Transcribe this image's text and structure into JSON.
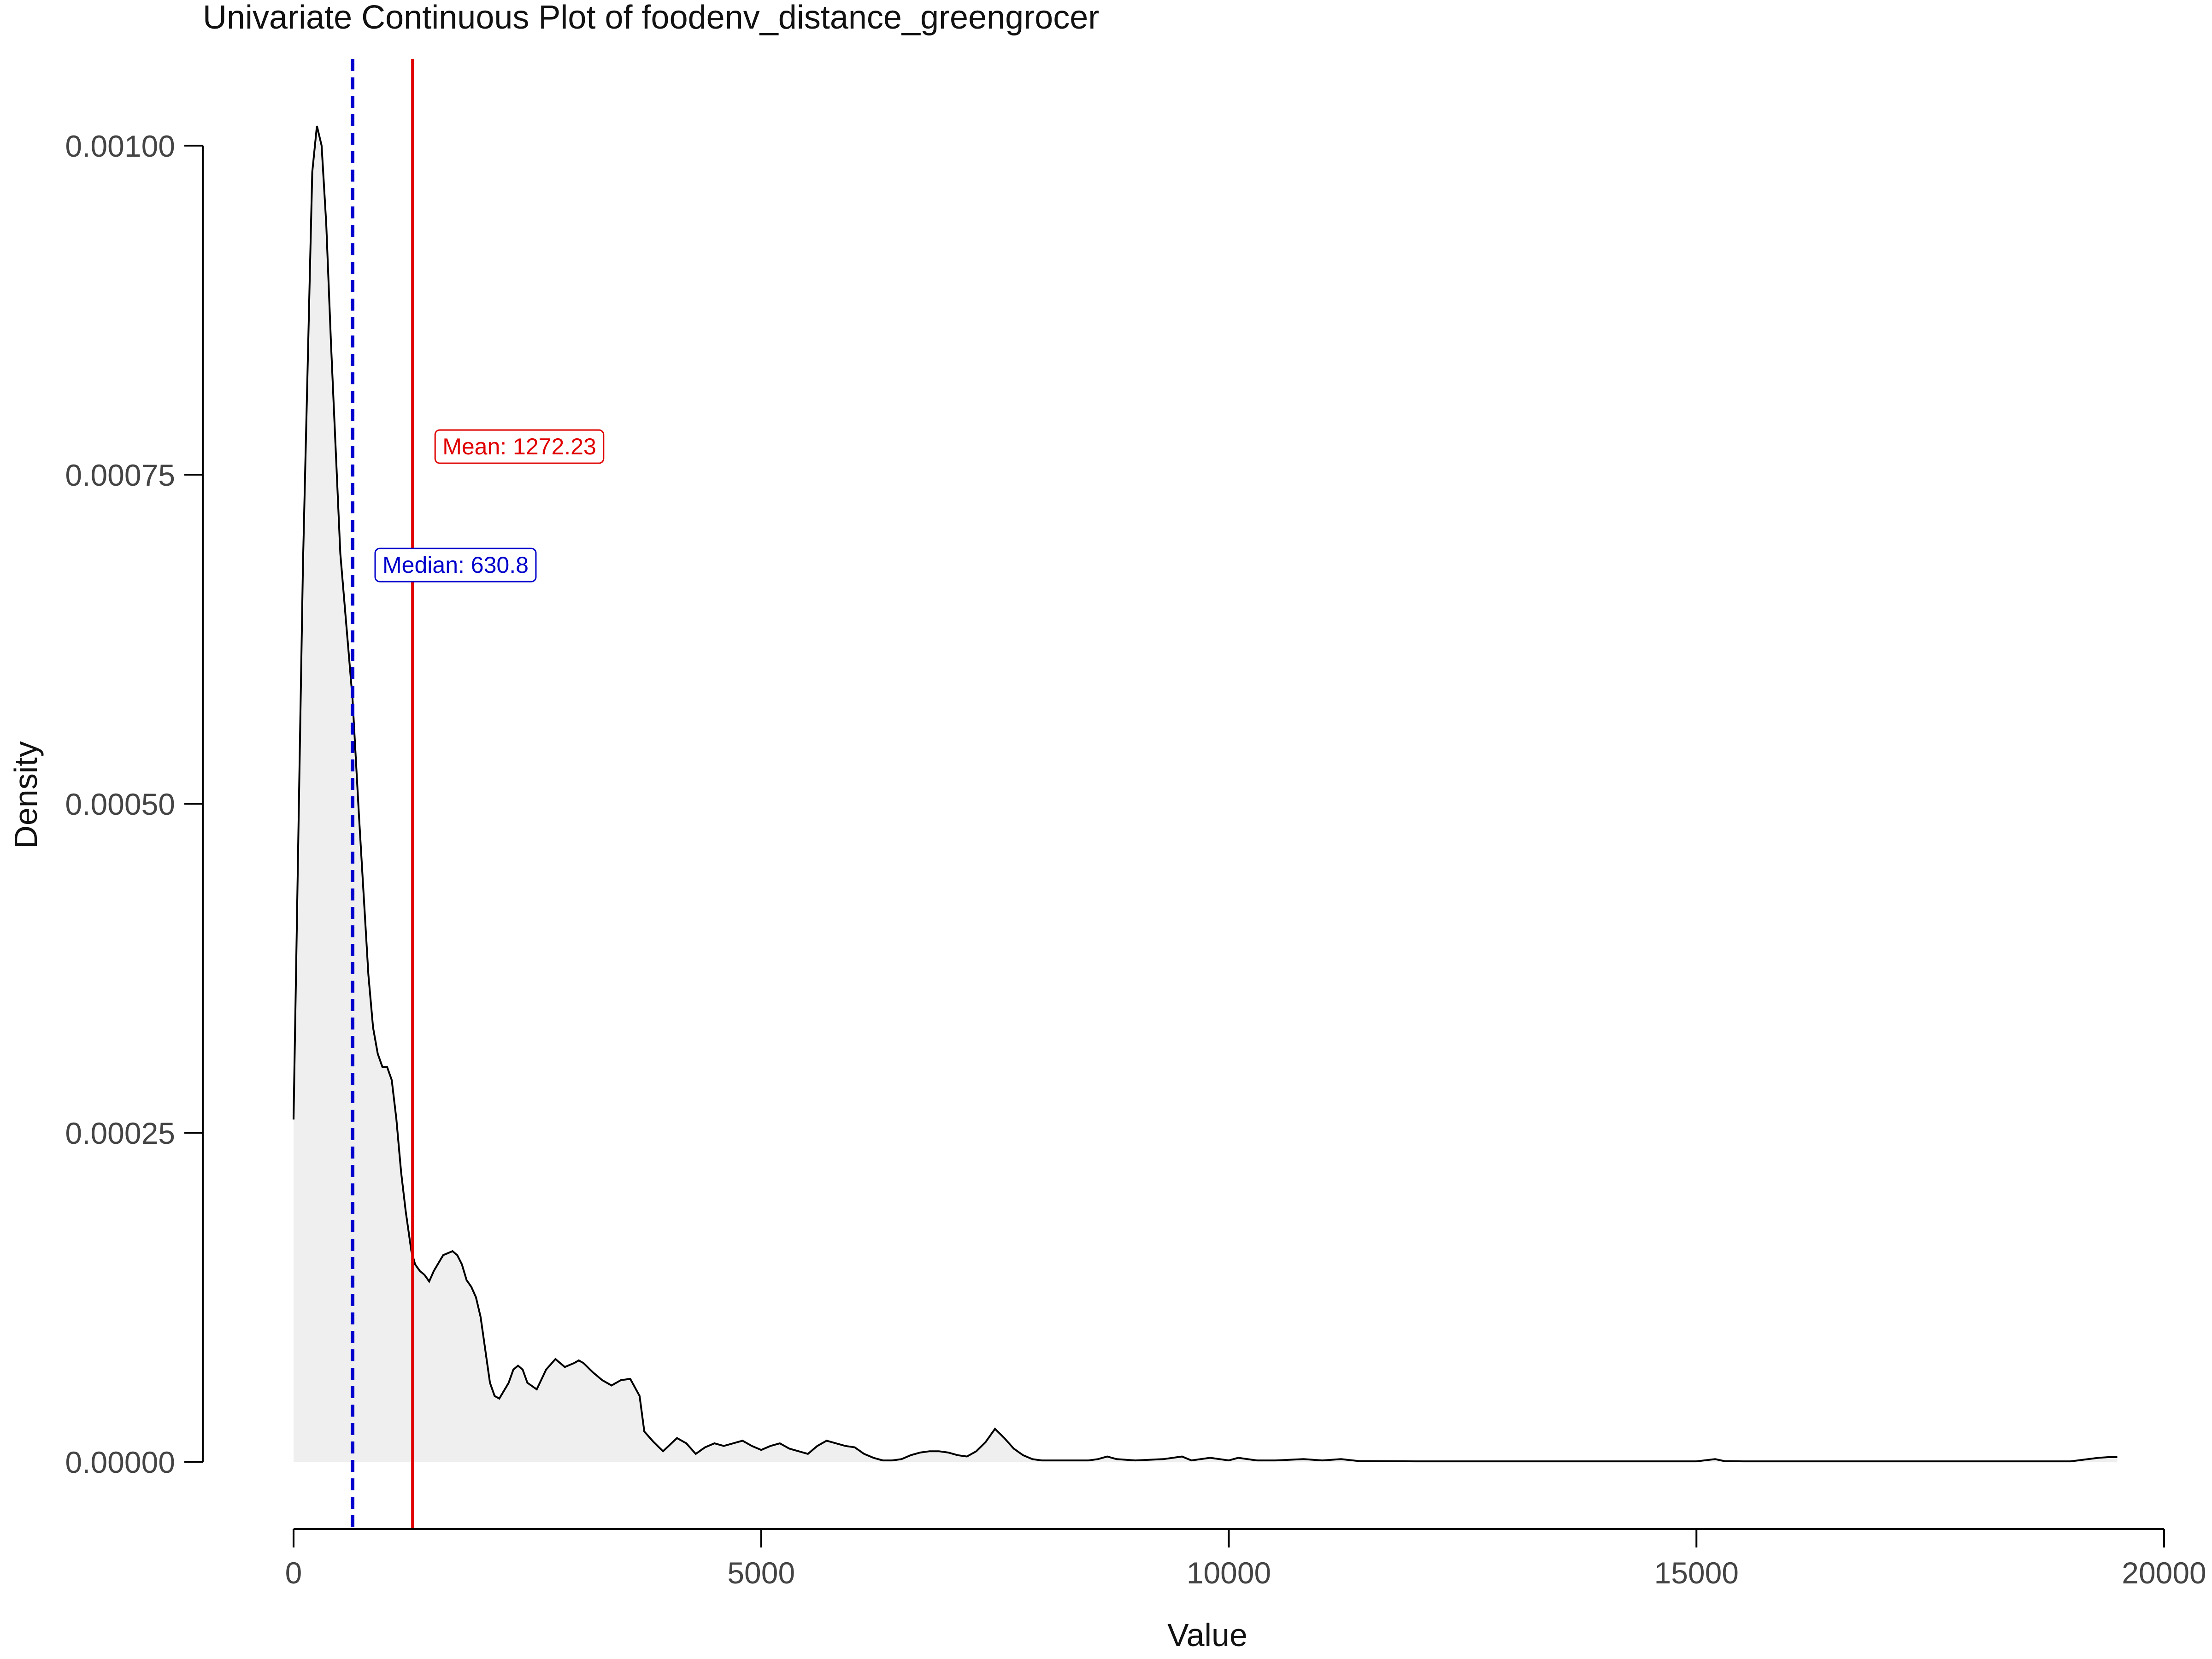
{
  "chart_data": {
    "type": "area",
    "title": "Univariate Continuous Plot of foodenv_distance_greengrocer",
    "xlabel": "Value",
    "ylabel": "Density",
    "xlim": [
      0,
      20000
    ],
    "ylim": [
      0,
      0.001
    ],
    "x_ticks": [
      0,
      5000,
      10000,
      15000,
      20000
    ],
    "x_tick_labels": [
      "0",
      "5000",
      "10000",
      "15000",
      "20000"
    ],
    "y_ticks": [
      0,
      0.00025,
      0.0005,
      0.00075,
      0.001
    ],
    "y_tick_labels": [
      "0.00000",
      "0.00025",
      "0.00050",
      "0.00075",
      "0.00100"
    ],
    "grid": false,
    "fill_color": "#efefef",
    "line_color": "#000000",
    "series": [
      {
        "x": [
          0,
          100,
          200,
          250,
          300,
          350,
          400,
          500,
          630,
          700,
          800,
          850,
          900,
          950,
          1000,
          1050,
          1100,
          1150,
          1200,
          1260,
          1300,
          1350,
          1400,
          1450,
          1500,
          1600,
          1700,
          1750,
          1800,
          1850,
          1900,
          1950,
          2000,
          2100,
          2150,
          2200,
          2300,
          2350,
          2400,
          2450,
          2500,
          2600,
          2700,
          2800,
          2900,
          3000,
          3050,
          3100,
          3200,
          3300,
          3400,
          3500,
          3600,
          3700,
          3750,
          3850,
          3950,
          4100,
          4200,
          4300,
          4400,
          4500,
          4600,
          4700,
          4800,
          4900,
          5000,
          5100,
          5200,
          5300,
          5400,
          5500,
          5600,
          5700,
          5800,
          5900,
          6000,
          6100,
          6200,
          6300,
          6400,
          6500,
          6600,
          6700,
          6800,
          6900,
          7000,
          7100,
          7200,
          7300,
          7400,
          7500,
          7600,
          7700,
          7800,
          7900,
          8000,
          8100,
          8200,
          8300,
          8400,
          8500,
          8600,
          8700,
          8800,
          9000,
          9300,
          9500,
          9600,
          9800,
          10000,
          10100,
          10300,
          10500,
          10800,
          11000,
          11200,
          11400,
          11500,
          12000,
          13000,
          14000,
          15000,
          15200,
          15300,
          15500,
          15600,
          16000,
          17000,
          18000,
          19000,
          19300,
          19400,
          19500
        ],
        "y": [
          0.00026,
          0.00068,
          0.00098,
          0.001015,
          0.001,
          0.00094,
          0.00085,
          0.00069,
          0.00058,
          0.00049,
          0.00037,
          0.00033,
          0.00031,
          0.0003,
          0.0003,
          0.00029,
          0.00026,
          0.00022,
          0.00019,
          0.00016,
          0.00015,
          0.000145,
          0.000142,
          0.000137,
          0.000145,
          0.000157,
          0.00016,
          0.000157,
          0.00015,
          0.000138,
          0.000133,
          0.000125,
          0.00011,
          6e-05,
          5e-05,
          4.8e-05,
          6e-05,
          7e-05,
          7.3e-05,
          7e-05,
          6e-05,
          5.5e-05,
          7e-05,
          7.8e-05,
          7.2e-05,
          7.5e-05,
          7.7e-05,
          7.5e-05,
          6.8e-05,
          6.2e-05,
          5.8e-05,
          6.2e-05,
          6.3e-05,
          5e-05,
          2.3e-05,
          1.5e-05,
          8e-06,
          1.8e-05,
          1.4e-05,
          6e-06,
          1.1e-05,
          1.4e-05,
          1.2e-05,
          1.4e-05,
          1.6e-05,
          1.2e-05,
          9e-06,
          1.2e-05,
          1.4e-05,
          1e-05,
          8e-06,
          6e-06,
          1.2e-05,
          1.6e-05,
          1.4e-05,
          1.2e-05,
          1.1e-05,
          6e-06,
          3e-06,
          1e-06,
          1e-06,
          2e-06,
          5e-06,
          7e-06,
          8e-06,
          8e-06,
          7e-06,
          5e-06,
          4e-06,
          8e-06,
          1.5e-05,
          2.5e-05,
          1.8e-05,
          1e-05,
          5e-06,
          2e-06,
          1e-06,
          1e-06,
          1e-06,
          1e-06,
          1e-06,
          1e-06,
          2e-06,
          4e-06,
          2e-06,
          1e-06,
          2e-06,
          4e-06,
          1e-06,
          3e-06,
          1e-06,
          3e-06,
          1e-06,
          1e-06,
          2e-06,
          1e-06,
          2e-06,
          5e-07,
          5e-07,
          3e-07,
          3e-07,
          3e-07,
          3e-07,
          2e-06,
          5e-07,
          3e-07,
          3e-07,
          3e-07,
          3e-07,
          3e-07,
          3e-07,
          3e-06,
          3.5e-06,
          3.5e-06
        ]
      }
    ],
    "annotations": [
      {
        "label": "Mean: 1272.23",
        "x": 1272.23,
        "color": "#e00000",
        "linestyle": "solid",
        "label_y": 0.00077
      },
      {
        "label": "Median: 630.8",
        "x": 630.8,
        "color": "#0000cc",
        "linestyle": "dashed",
        "label_y": 0.00068
      }
    ]
  }
}
